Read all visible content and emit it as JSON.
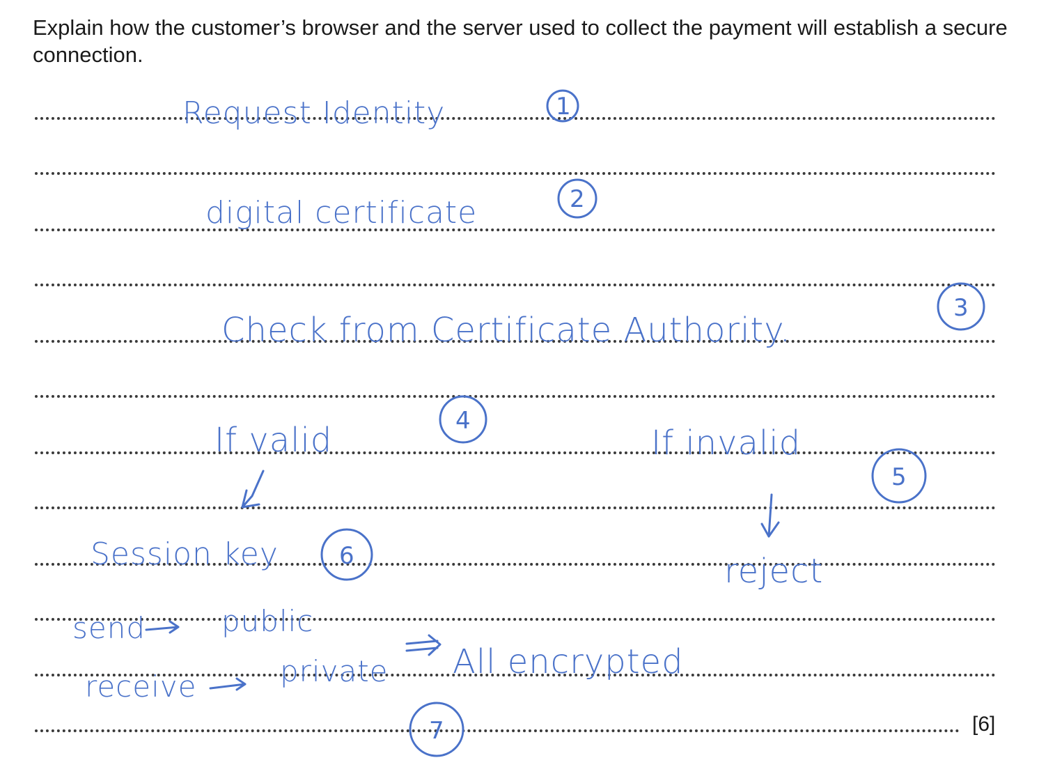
{
  "question": {
    "text": "Explain how the customer’s browser and the server used to collect the payment will establish a secure connection."
  },
  "marks": "[6]",
  "answer": {
    "request_identity": "Request Identity",
    "digital_certificate": "digital certificate",
    "check_ca": "Check from Certificate Authority.",
    "if_valid": "If valid",
    "if_invalid": "If invalid",
    "session_key": "Session key",
    "reject": "reject",
    "send": "send",
    "public": "public",
    "receive": "receive",
    "private": "private",
    "all_encrypted": "All encrypted",
    "step_numbers": [
      "1",
      "2",
      "3",
      "4",
      "5",
      "6",
      "7"
    ]
  },
  "ink_color": "#4a72c9"
}
